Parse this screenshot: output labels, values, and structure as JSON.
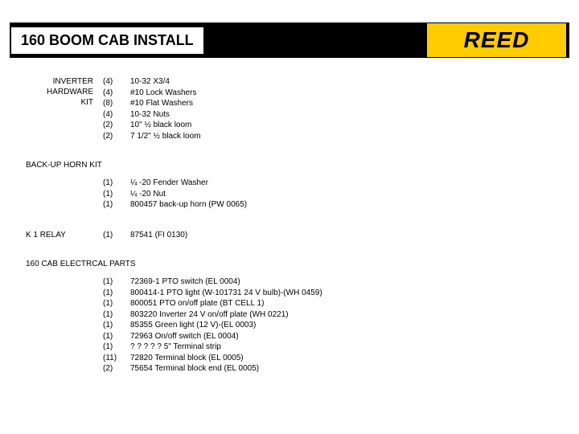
{
  "header": {
    "title": "160 BOOM CAB INSTALL",
    "logo": "REED"
  },
  "sections": {
    "inverter": {
      "label_l1": "INVERTER",
      "label_l2": "HARDWARE",
      "label_l3": "KIT",
      "items": [
        {
          "qty": "(4)",
          "desc": "10-32 X3/4"
        },
        {
          "qty": "(4)",
          "desc": "#10 Lock Washers"
        },
        {
          "qty": "(8)",
          "desc": "#10 Flat Washers"
        },
        {
          "qty": "(4)",
          "desc": "10-32 Nuts"
        },
        {
          "qty": "(2)",
          "desc": "10\" ½ black loom"
        },
        {
          "qty": "(2)",
          "desc": "7 1/2\" ½ black loom"
        }
      ]
    },
    "backup": {
      "heading": "BACK-UP HORN KIT",
      "items": [
        {
          "qty": "(1)",
          "desc": "¼ -20 Fender Washer"
        },
        {
          "qty": "(1)",
          "desc": "¼ -20 Nut"
        },
        {
          "qty": "(1)",
          "desc": "800457 back-up horn (PW 0065)"
        }
      ]
    },
    "k1relay": {
      "label": "K 1 RELAY",
      "items": [
        {
          "qty": "(1)",
          "desc": "87541  (FI 0130)"
        }
      ]
    },
    "electrical": {
      "heading": "160 CAB ELECTRCAL PARTS",
      "items": [
        {
          "qty": "(1)",
          "desc": "72369-1  PTO switch (EL 0004)"
        },
        {
          "qty": "(1)",
          "desc": "800414-1  PTO light (W-101731 24 V bulb)-(WH 0459)"
        },
        {
          "qty": "(1)",
          "desc": "800051 PTO on/off plate (BT CELL 1)"
        },
        {
          "qty": "(1)",
          "desc": "803220 Inverter 24 V on/off plate (WH 0221)"
        },
        {
          "qty": "(1)",
          "desc": "85355 Green light (12 V)-(EL 0003)"
        },
        {
          "qty": "(1)",
          "desc": "72963 On/off switch (EL 0004)"
        },
        {
          "qty": "(1)",
          "desc": "? ? ? ? ?  5\" Terminal strip"
        },
        {
          "qty": "(11)",
          "desc": "72820 Terminal block (EL 0005)"
        },
        {
          "qty": "(2)",
          "desc": "75654 Terminal block end (EL 0005)"
        }
      ]
    }
  }
}
